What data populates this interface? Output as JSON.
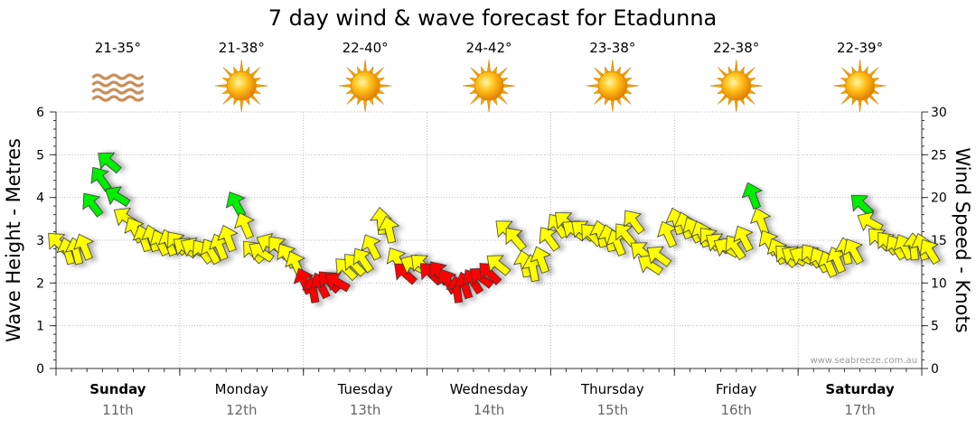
{
  "chart_data": {
    "type": "wind-wave-forecast",
    "title": "7 day wind & wave forecast for Etadunna",
    "ylabel_left": "Wave Height - Metres",
    "ylabel_right": "Wind Speed - Knots",
    "ylim_left": [
      0,
      6
    ],
    "ylim_right": [
      0,
      30
    ],
    "left_ticks": [
      "0",
      "1",
      "2",
      "3",
      "4",
      "5",
      "6"
    ],
    "right_ticks": [
      "0",
      "5",
      "10",
      "15",
      "20",
      "25",
      "30"
    ],
    "credit": "www.seabreeze.com.au",
    "colors": {
      "low": "#ffff00",
      "mid": "#ff0000",
      "high": "#00ee00",
      "outline": "#333333"
    },
    "days": [
      {
        "name": "Sunday",
        "date": "11th",
        "temp": "21-35°",
        "weather": "haze-icon",
        "bold": true
      },
      {
        "name": "Monday",
        "date": "12th",
        "temp": "21-38°",
        "weather": "sun-icon",
        "bold": false
      },
      {
        "name": "Tuesday",
        "date": "13th",
        "temp": "22-40°",
        "weather": "sun-icon",
        "bold": false
      },
      {
        "name": "Wednesday",
        "date": "14th",
        "temp": "24-42°",
        "weather": "sun-icon",
        "bold": false
      },
      {
        "name": "Thursday",
        "date": "15th",
        "temp": "23-38°",
        "weather": "sun-icon",
        "bold": false
      },
      {
        "name": "Friday",
        "date": "16th",
        "temp": "22-38°",
        "weather": "sun-icon",
        "bold": false
      },
      {
        "name": "Saturday",
        "date": "17th",
        "temp": "22-39°",
        "weather": "sun-icon",
        "bold": true
      }
    ],
    "wind_knots": [
      14.5,
      13.5,
      13.5,
      14.0,
      19.0,
      22.0,
      24.0,
      20.0,
      17.5,
      16.0,
      15.0,
      15.0,
      14.5,
      14.5,
      14.5,
      14.0,
      14.0,
      13.5,
      13.5,
      14.0,
      15.0,
      19.0,
      16.5,
      13.5,
      13.5,
      14.5,
      14.0,
      13.0,
      12.0,
      10.0,
      9.0,
      9.5,
      10.0,
      10.0,
      11.5,
      12.0,
      12.5,
      14.0,
      17.0,
      16.0,
      12.5,
      11.0,
      12.0,
      12.0,
      11.0,
      11.0,
      10.0,
      9.0,
      9.5,
      10.0,
      10.5,
      11.0,
      12.0,
      16.0,
      15.0,
      12.0,
      11.5,
      12.5,
      15.0,
      16.5,
      17.0,
      16.0,
      16.0,
      15.5,
      15.5,
      15.0,
      14.5,
      15.5,
      17.0,
      13.5,
      12.0,
      13.0,
      15.5,
      17.0,
      16.5,
      16.0,
      15.5,
      15.0,
      14.5,
      14.0,
      14.0,
      15.0,
      20.0,
      17.0,
      14.5,
      13.5,
      13.0,
      13.0,
      13.0,
      13.0,
      12.5,
      12.0,
      12.5,
      13.5,
      13.5,
      19.0,
      17.0,
      15.0,
      14.5,
      14.0,
      14.0,
      14.0,
      14.0,
      13.5
    ]
  }
}
